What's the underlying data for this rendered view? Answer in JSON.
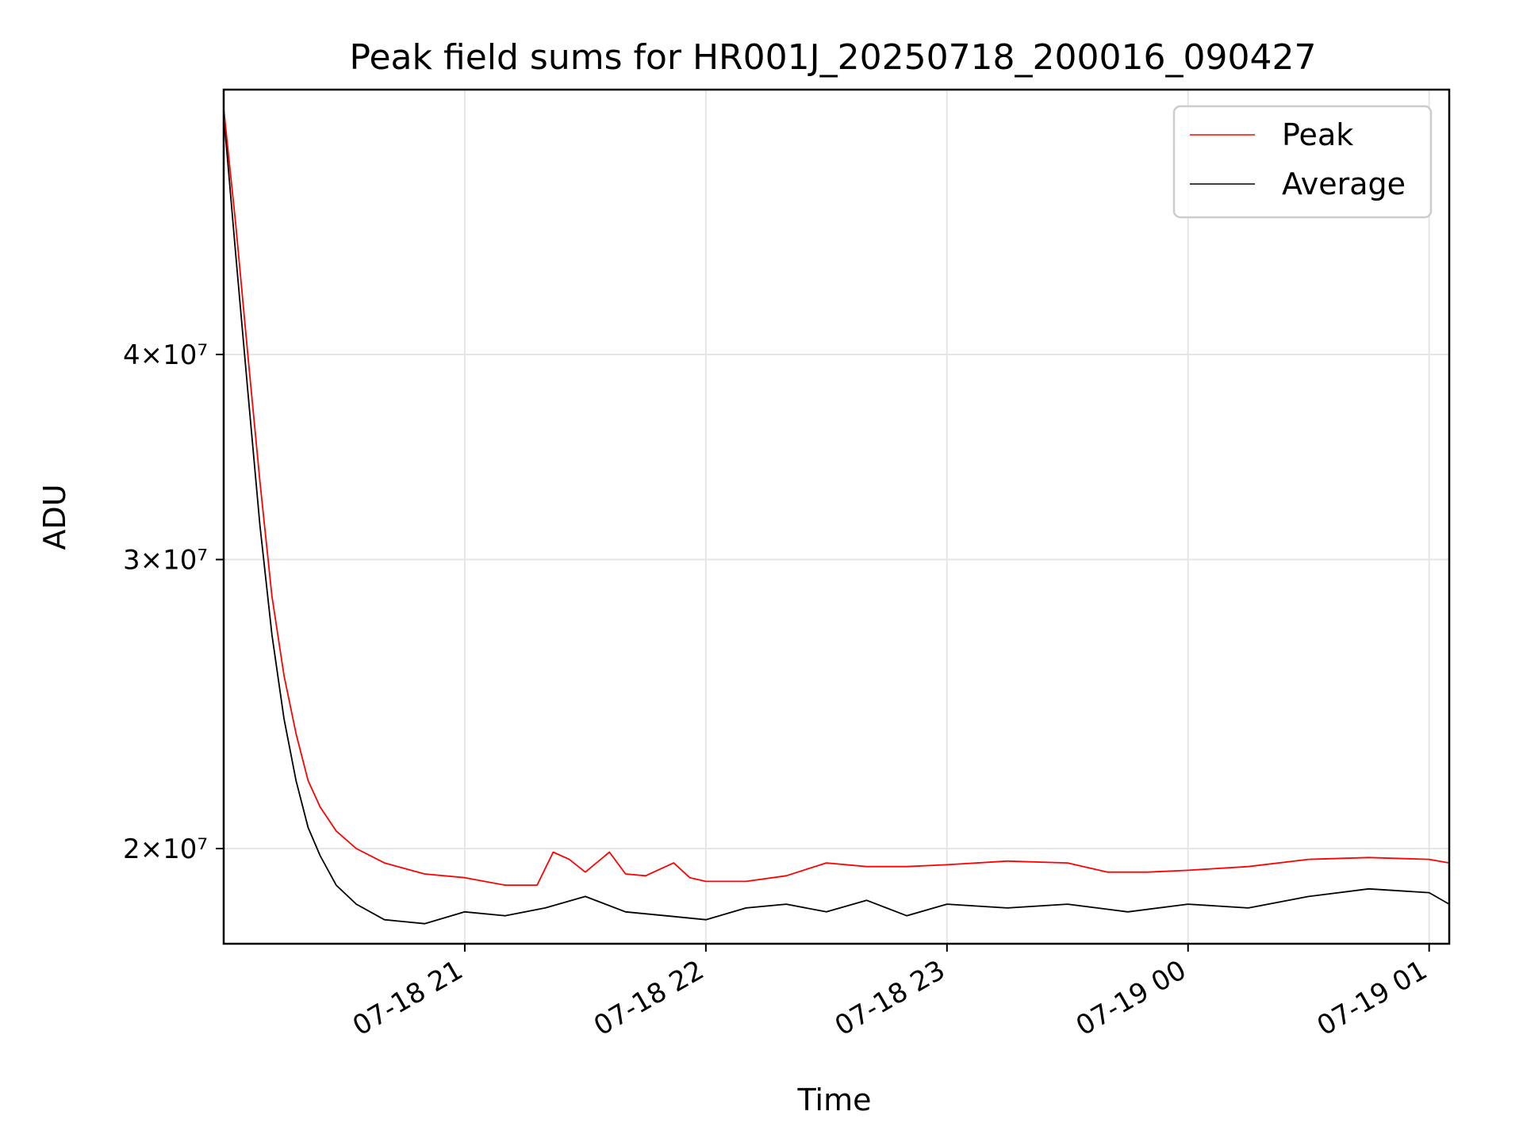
{
  "chart_data": {
    "type": "line",
    "title": "Peak field sums for HR001J_20250718_200016_090427",
    "xlabel": "Time",
    "ylabel": "ADU",
    "y_scale": "log",
    "x_ticks": [
      "07-18 21",
      "07-18 22",
      "07-18 23",
      "07-19 00",
      "07-19 01"
    ],
    "x_tick_values": [
      "2025-07-18T21:00",
      "2025-07-18T22:00",
      "2025-07-18T23:00",
      "2025-07-19T00:00",
      "2025-07-19T01:00"
    ],
    "xlim": [
      "2025-07-18T20:00",
      "2025-07-19T01:05"
    ],
    "y_ticks": [
      {
        "value": 20000000,
        "label": "2×10⁷"
      },
      {
        "value": 30000000,
        "label": "3×10⁷"
      },
      {
        "value": 40000000,
        "label": "4×10⁷"
      }
    ],
    "ylim": [
      17500000,
      58000000
    ],
    "grid": true,
    "legend_position": "top-right",
    "series": [
      {
        "name": "Peak",
        "color": "#ff0000",
        "points": [
          [
            "2025-07-18T20:00",
            56500000
          ],
          [
            "2025-07-18T20:03",
            48000000
          ],
          [
            "2025-07-18T20:06",
            40000000
          ],
          [
            "2025-07-18T20:09",
            33500000
          ],
          [
            "2025-07-18T20:12",
            28500000
          ],
          [
            "2025-07-18T20:15",
            25500000
          ],
          [
            "2025-07-18T20:18",
            23500000
          ],
          [
            "2025-07-18T20:21",
            22000000
          ],
          [
            "2025-07-18T20:24",
            21200000
          ],
          [
            "2025-07-18T20:28",
            20500000
          ],
          [
            "2025-07-18T20:33",
            20000000
          ],
          [
            "2025-07-18T20:40",
            19600000
          ],
          [
            "2025-07-18T20:50",
            19300000
          ],
          [
            "2025-07-18T21:00",
            19200000
          ],
          [
            "2025-07-18T21:10",
            19000000
          ],
          [
            "2025-07-18T21:18",
            19000000
          ],
          [
            "2025-07-18T21:22",
            19900000
          ],
          [
            "2025-07-18T21:26",
            19700000
          ],
          [
            "2025-07-18T21:30",
            19350000
          ],
          [
            "2025-07-18T21:36",
            19900000
          ],
          [
            "2025-07-18T21:40",
            19300000
          ],
          [
            "2025-07-18T21:45",
            19250000
          ],
          [
            "2025-07-18T21:52",
            19600000
          ],
          [
            "2025-07-18T21:56",
            19200000
          ],
          [
            "2025-07-18T22:00",
            19100000
          ],
          [
            "2025-07-18T22:10",
            19100000
          ],
          [
            "2025-07-18T22:20",
            19250000
          ],
          [
            "2025-07-18T22:30",
            19600000
          ],
          [
            "2025-07-18T22:40",
            19500000
          ],
          [
            "2025-07-18T22:50",
            19500000
          ],
          [
            "2025-07-18T23:00",
            19550000
          ],
          [
            "2025-07-18T23:15",
            19650000
          ],
          [
            "2025-07-18T23:30",
            19600000
          ],
          [
            "2025-07-18T23:40",
            19350000
          ],
          [
            "2025-07-18T23:50",
            19350000
          ],
          [
            "2025-07-19T00:00",
            19400000
          ],
          [
            "2025-07-19T00:15",
            19500000
          ],
          [
            "2025-07-19T00:30",
            19700000
          ],
          [
            "2025-07-19T00:45",
            19750000
          ],
          [
            "2025-07-19T01:00",
            19700000
          ],
          [
            "2025-07-19T01:05",
            19600000
          ]
        ]
      },
      {
        "name": "Average",
        "color": "#000000",
        "points": [
          [
            "2025-07-18T20:00",
            56000000
          ],
          [
            "2025-07-18T20:03",
            46000000
          ],
          [
            "2025-07-18T20:06",
            38000000
          ],
          [
            "2025-07-18T20:09",
            31500000
          ],
          [
            "2025-07-18T20:12",
            27000000
          ],
          [
            "2025-07-18T20:15",
            24000000
          ],
          [
            "2025-07-18T20:18",
            22000000
          ],
          [
            "2025-07-18T20:21",
            20600000
          ],
          [
            "2025-07-18T20:24",
            19800000
          ],
          [
            "2025-07-18T20:28",
            19000000
          ],
          [
            "2025-07-18T20:33",
            18500000
          ],
          [
            "2025-07-18T20:40",
            18100000
          ],
          [
            "2025-07-18T20:50",
            18000000
          ],
          [
            "2025-07-18T21:00",
            18300000
          ],
          [
            "2025-07-18T21:10",
            18200000
          ],
          [
            "2025-07-18T21:20",
            18400000
          ],
          [
            "2025-07-18T21:30",
            18700000
          ],
          [
            "2025-07-18T21:40",
            18300000
          ],
          [
            "2025-07-18T21:50",
            18200000
          ],
          [
            "2025-07-18T22:00",
            18100000
          ],
          [
            "2025-07-18T22:10",
            18400000
          ],
          [
            "2025-07-18T22:20",
            18500000
          ],
          [
            "2025-07-18T22:30",
            18300000
          ],
          [
            "2025-07-18T22:40",
            18600000
          ],
          [
            "2025-07-18T22:50",
            18200000
          ],
          [
            "2025-07-18T23:00",
            18500000
          ],
          [
            "2025-07-18T23:15",
            18400000
          ],
          [
            "2025-07-18T23:30",
            18500000
          ],
          [
            "2025-07-18T23:45",
            18300000
          ],
          [
            "2025-07-19T00:00",
            18500000
          ],
          [
            "2025-07-19T00:15",
            18400000
          ],
          [
            "2025-07-19T00:30",
            18700000
          ],
          [
            "2025-07-19T00:45",
            18900000
          ],
          [
            "2025-07-19T01:00",
            18800000
          ],
          [
            "2025-07-19T01:05",
            18500000
          ]
        ]
      }
    ]
  }
}
